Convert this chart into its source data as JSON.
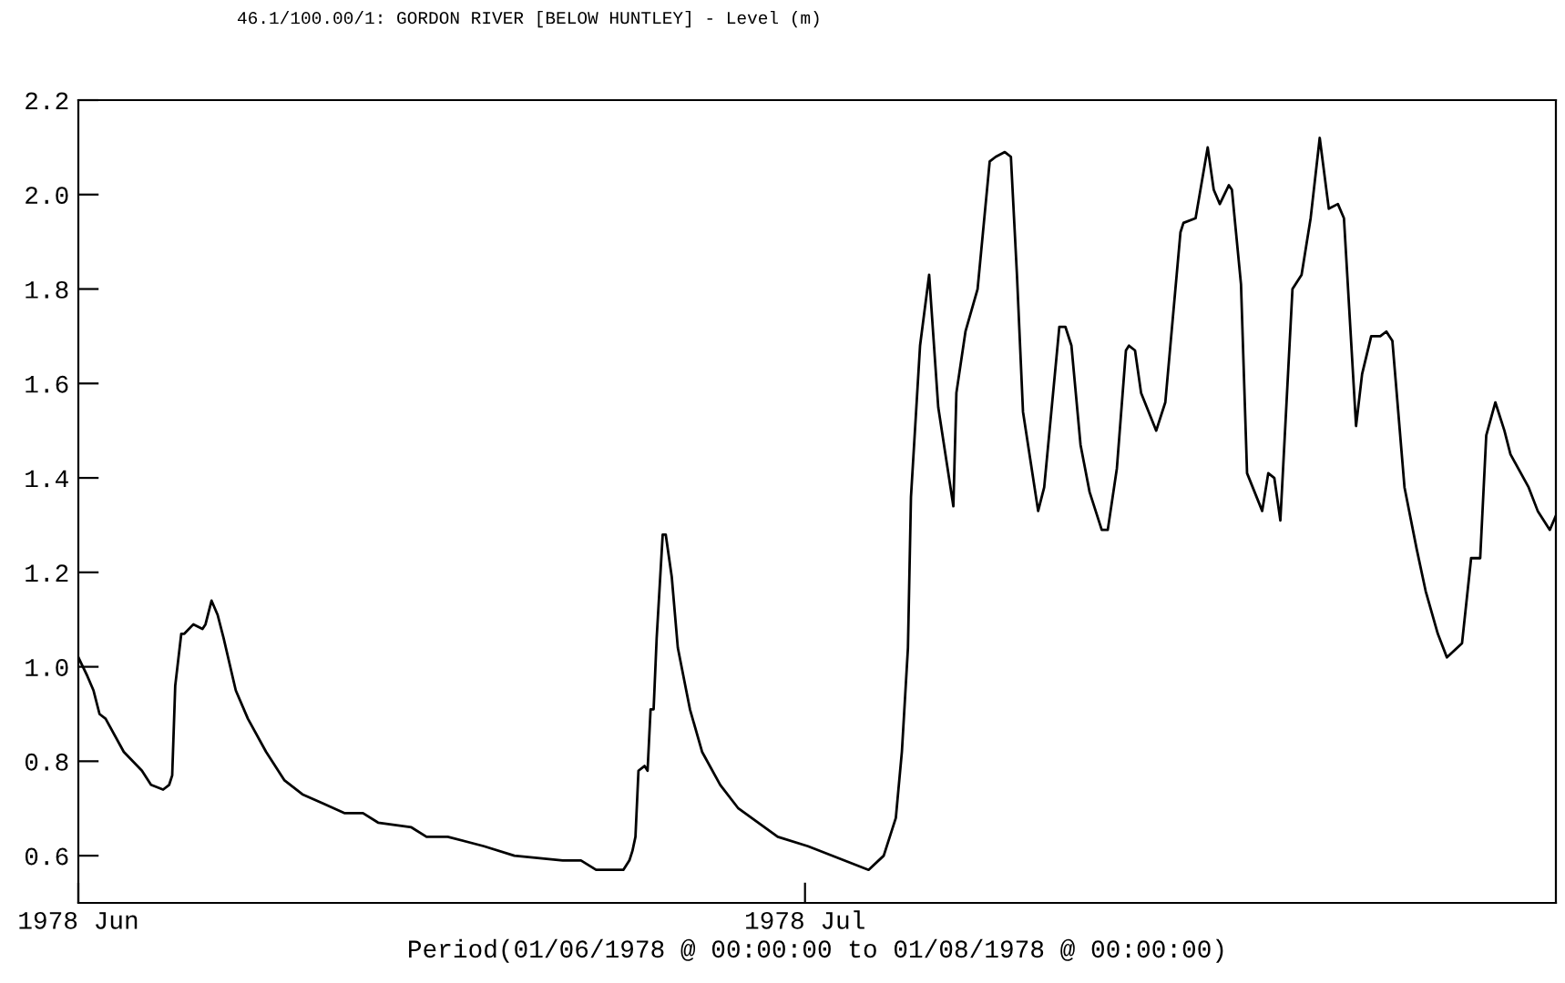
{
  "chart_data": {
    "type": "line",
    "title": "46.1/100.00/1: GORDON RIVER [BELOW HUNTLEY] - Level (m)",
    "xlabel": "Period(01/06/1978 @ 00:00:00 to 01/08/1978 @ 00:00:00)",
    "xlim": [
      "1978-06-01",
      "1978-08-01"
    ],
    "xticks": [
      {
        "value": "1978-06-01",
        "label": "1978 Jun"
      },
      {
        "value": "1978-07-01",
        "label": "1978 Jul"
      }
    ],
    "ylim": [
      0.5,
      2.2
    ],
    "yticks": [
      {
        "value": 0.6,
        "label": "0.6"
      },
      {
        "value": 0.8,
        "label": "0.8"
      },
      {
        "value": 1.0,
        "label": "1.0"
      },
      {
        "value": 1.2,
        "label": "1.2"
      },
      {
        "value": 1.4,
        "label": "1.4"
      },
      {
        "value": 1.6,
        "label": "1.6"
      },
      {
        "value": 1.8,
        "label": "1.8"
      },
      {
        "value": 2.0,
        "label": "2.0"
      },
      {
        "value": 2.2,
        "label": "2.2"
      }
    ],
    "grid": false,
    "legend": false,
    "marker": "none",
    "line_style": "solid",
    "series": [
      {
        "color": "#000000",
        "x": [
          "1978-06-01T00:00",
          "1978-06-01T09:00",
          "1978-06-01T15:00",
          "1978-06-01T21:00",
          "1978-06-02T03:00",
          "1978-06-02T21:00",
          "1978-06-03T15:00",
          "1978-06-04T00:00",
          "1978-06-04T12:00",
          "1978-06-04T18:00",
          "1978-06-04T21:00",
          "1978-06-05T00:00",
          "1978-06-05T06:00",
          "1978-06-05T09:00",
          "1978-06-05T18:00",
          "1978-06-06T03:00",
          "1978-06-06T06:00",
          "1978-06-06T12:00",
          "1978-06-06T18:00",
          "1978-06-07T00:00",
          "1978-06-07T12:00",
          "1978-06-08T00:00",
          "1978-06-08T18:00",
          "1978-06-09T12:00",
          "1978-06-10T06:00",
          "1978-06-11T03:00",
          "1978-06-12T00:00",
          "1978-06-12T18:00",
          "1978-06-13T09:00",
          "1978-06-14T18:00",
          "1978-06-15T09:00",
          "1978-06-16T06:00",
          "1978-06-17T18:00",
          "1978-06-19T00:00",
          "1978-06-21T00:00",
          "1978-06-21T18:00",
          "1978-06-22T09:00",
          "1978-06-23T12:00",
          "1978-06-23T18:00",
          "1978-06-23T21:00",
          "1978-06-24T00:00",
          "1978-06-24T03:00",
          "1978-06-24T09:00",
          "1978-06-24T12:00",
          "1978-06-24T15:00",
          "1978-06-24T18:00",
          "1978-06-24T21:00",
          "1978-06-25T03:00",
          "1978-06-25T06:00",
          "1978-06-25T12:00",
          "1978-06-25T18:00",
          "1978-06-26T06:00",
          "1978-06-26T18:00",
          "1978-06-27T12:00",
          "1978-06-28T06:00",
          "1978-06-29T21:00",
          "1978-07-01T03:00",
          "1978-07-03T15:00",
          "1978-07-04T06:00",
          "1978-07-04T18:00",
          "1978-07-05T00:00",
          "1978-07-05T06:00",
          "1978-07-05T09:00",
          "1978-07-05T18:00",
          "1978-07-06T03:00",
          "1978-07-06T12:00",
          "1978-07-07T03:00",
          "1978-07-07T06:00",
          "1978-07-07T15:00",
          "1978-07-08T03:00",
          "1978-07-08T15:00",
          "1978-07-08T21:00",
          "1978-07-09T06:00",
          "1978-07-09T12:00",
          "1978-07-09T18:00",
          "1978-07-10T00:00",
          "1978-07-10T15:00",
          "1978-07-10T21:00",
          "1978-07-11T12:00",
          "1978-07-11T18:00",
          "1978-07-12T00:00",
          "1978-07-12T09:00",
          "1978-07-12T18:00",
          "1978-07-13T06:00",
          "1978-07-13T12:00",
          "1978-07-13T21:00",
          "1978-07-14T06:00",
          "1978-07-14T09:00",
          "1978-07-14T15:00",
          "1978-07-14T21:00",
          "1978-07-15T12:00",
          "1978-07-15T21:00",
          "1978-07-16T12:00",
          "1978-07-16T15:00",
          "1978-07-17T03:00",
          "1978-07-17T15:00",
          "1978-07-17T21:00",
          "1978-07-18T03:00",
          "1978-07-18T12:00",
          "1978-07-18T15:00",
          "1978-07-19T00:00",
          "1978-07-19T06:00",
          "1978-07-19T21:00",
          "1978-07-20T03:00",
          "1978-07-20T09:00",
          "1978-07-20T15:00",
          "1978-07-21T03:00",
          "1978-07-21T12:00",
          "1978-07-21T21:00",
          "1978-07-22T06:00",
          "1978-07-22T15:00",
          "1978-07-23T00:00",
          "1978-07-23T06:00",
          "1978-07-23T18:00",
          "1978-07-24T00:00",
          "1978-07-24T09:00",
          "1978-07-24T18:00",
          "1978-07-25T00:00",
          "1978-07-25T06:00",
          "1978-07-25T18:00",
          "1978-07-26T06:00",
          "1978-07-26T15:00",
          "1978-07-27T03:00",
          "1978-07-27T12:00",
          "1978-07-28T03:00",
          "1978-07-28T12:00",
          "1978-07-28T21:00",
          "1978-07-29T03:00",
          "1978-07-29T12:00",
          "1978-07-29T21:00",
          "1978-07-30T03:00",
          "1978-07-30T21:00",
          "1978-07-31T06:00",
          "1978-07-31T18:00",
          "1978-08-01T00:00"
        ],
        "values": [
          1.02,
          0.98,
          0.95,
          0.9,
          0.89,
          0.82,
          0.78,
          0.75,
          0.74,
          0.75,
          0.77,
          0.96,
          1.07,
          1.07,
          1.09,
          1.08,
          1.09,
          1.14,
          1.11,
          1.06,
          0.95,
          0.89,
          0.82,
          0.76,
          0.73,
          0.71,
          0.69,
          0.69,
          0.67,
          0.66,
          0.64,
          0.64,
          0.62,
          0.6,
          0.59,
          0.59,
          0.57,
          0.57,
          0.59,
          0.61,
          0.64,
          0.78,
          0.79,
          0.78,
          0.91,
          0.91,
          1.06,
          1.28,
          1.28,
          1.19,
          1.04,
          0.91,
          0.82,
          0.75,
          0.7,
          0.64,
          0.62,
          0.57,
          0.6,
          0.68,
          0.82,
          1.04,
          1.36,
          1.68,
          1.83,
          1.55,
          1.34,
          1.58,
          1.71,
          1.8,
          2.07,
          2.08,
          2.09,
          2.08,
          1.83,
          1.54,
          1.33,
          1.38,
          1.72,
          1.72,
          1.68,
          1.47,
          1.37,
          1.29,
          1.29,
          1.42,
          1.67,
          1.68,
          1.67,
          1.58,
          1.5,
          1.56,
          1.92,
          1.94,
          1.95,
          2.1,
          2.01,
          1.98,
          2.02,
          2.01,
          1.81,
          1.41,
          1.33,
          1.41,
          1.4,
          1.31,
          1.8,
          1.83,
          1.95,
          2.12,
          1.97,
          1.98,
          1.95,
          1.51,
          1.62,
          1.7,
          1.7,
          1.71,
          1.69,
          1.38,
          1.25,
          1.16,
          1.07,
          1.02,
          1.05,
          1.23,
          1.23,
          1.49,
          1.56,
          1.5,
          1.45,
          1.38,
          1.33,
          1.29,
          1.32
        ]
      }
    ]
  }
}
